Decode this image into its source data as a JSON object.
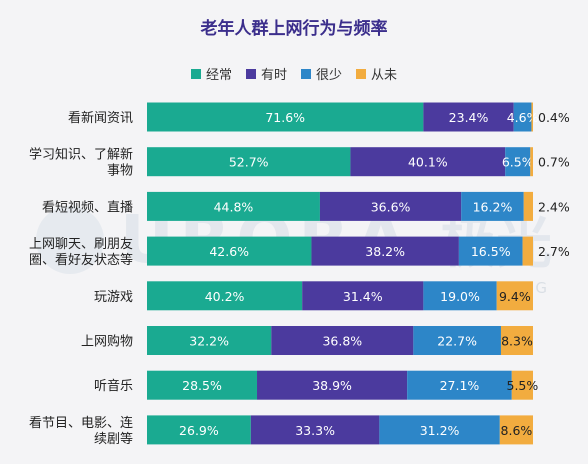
{
  "chart_data": {
    "type": "bar",
    "stacked": true,
    "orientation": "horizontal",
    "title": "老年人群上网行为与频率",
    "legend_position": "top",
    "grid": false,
    "categories": [
      "看新闻资讯",
      "学习知识、了解新事物",
      "看短视频、直播",
      "上网聊天、刷朋友圈、看好友状态等",
      "玩游戏",
      "上网购物",
      "听音乐",
      "看节目、电影、连续剧等"
    ],
    "category_lines": [
      [
        "看新闻资讯"
      ],
      [
        "学习知识、了解新",
        "事物"
      ],
      [
        "看短视频、直播"
      ],
      [
        "上网聊天、刷朋友",
        "圈、看好友状态等"
      ],
      [
        "玩游戏"
      ],
      [
        "上网购物"
      ],
      [
        "听音乐"
      ],
      [
        "看节目、电影、连",
        "续剧等"
      ]
    ],
    "series": [
      {
        "name": "经常",
        "color": "#1aaa91",
        "values": [
          71.6,
          52.7,
          44.8,
          42.6,
          40.2,
          32.2,
          28.5,
          26.9
        ],
        "labels": [
          "71.6%",
          "52.7%",
          "44.8%",
          "42.6%",
          "40.2%",
          "32.2%",
          "28.5%",
          "26.9%"
        ]
      },
      {
        "name": "有时",
        "color": "#4b3a9e",
        "values": [
          23.4,
          40.1,
          36.6,
          38.2,
          31.4,
          36.8,
          38.9,
          33.3
        ],
        "labels": [
          "23.4%",
          "40.1%",
          "36.6%",
          "38.2%",
          "31.4%",
          "36.8%",
          "38.9%",
          "33.3%"
        ]
      },
      {
        "name": "很少",
        "color": "#2d86c8",
        "values": [
          4.6,
          6.5,
          16.2,
          16.5,
          19.0,
          22.7,
          27.1,
          31.2
        ],
        "labels": [
          "4.6%",
          "6.5%",
          "16.2%",
          "16.5%",
          "19.0%",
          "22.7%",
          "27.1%",
          "31.2%"
        ]
      },
      {
        "name": "从未",
        "color": "#f2ac3f",
        "values": [
          0.4,
          0.7,
          2.4,
          2.7,
          9.4,
          8.3,
          5.5,
          8.6
        ],
        "labels": [
          "0.4%",
          "0.7%",
          "2.4%",
          "2.7%",
          "9.4%",
          "8.3%",
          "5.5%",
          "8.6%"
        ]
      }
    ],
    "xlim": [
      0,
      100
    ]
  },
  "watermark": {
    "main": "URORA",
    "cn": "极光",
    "sub": "NASDAQ: JG"
  }
}
